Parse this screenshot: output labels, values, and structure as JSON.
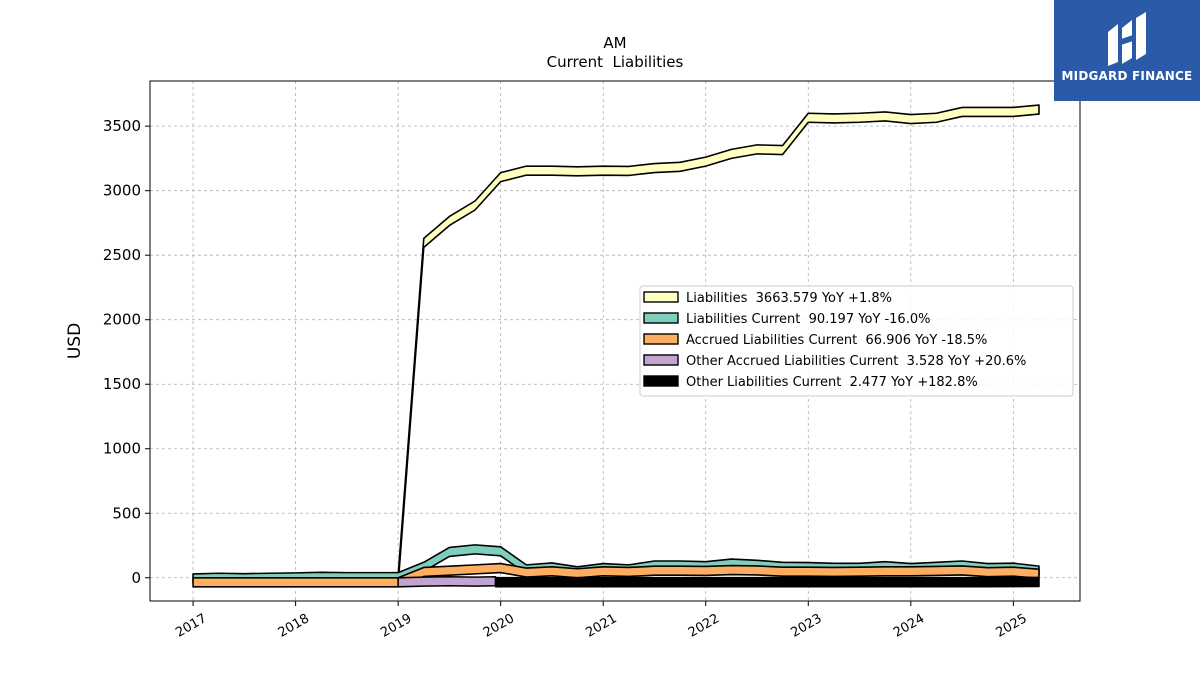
{
  "chart_data": {
    "type": "area",
    "title": "AM",
    "subtitle": "Current  Liabilities",
    "ylabel": "USD",
    "xlabel": "",
    "ylim": [
      -180,
      3850
    ],
    "xlim": [
      2016.58,
      2025.65
    ],
    "yticks": [
      0,
      500,
      1000,
      1500,
      2000,
      2500,
      3000,
      3500
    ],
    "xticks": [
      "2017",
      "2018",
      "2019",
      "2020",
      "2021",
      "2022",
      "2023",
      "2024",
      "2025"
    ],
    "grid": true,
    "legend_position": "center-right",
    "series": [
      {
        "name": "Liabilities",
        "legend": "Liabilities  3663.579 YoY +1.8%",
        "color": "#ffffbf",
        "start": 2019.0,
        "x": [
          2019.0,
          2019.25,
          2019.5,
          2019.75,
          2020.0,
          2020.25,
          2020.5,
          2020.75,
          2021.0,
          2021.25,
          2021.5,
          2021.75,
          2022.0,
          2022.25,
          2022.5,
          2022.75,
          2023.0,
          2023.25,
          2023.5,
          2023.75,
          2024.0,
          2024.25,
          2024.5,
          2024.75,
          2025.0,
          2025.25
        ],
        "values": [
          20,
          2630,
          2800,
          2920,
          3140,
          3190,
          3190,
          3185,
          3190,
          3188,
          3210,
          3220,
          3260,
          3320,
          3355,
          3350,
          3600,
          3595,
          3600,
          3610,
          3590,
          3600,
          3645,
          3645,
          3645,
          3663.579
        ]
      },
      {
        "name": "Liabilities Current",
        "legend": "Liabilities Current  90.197 YoY -16.0%",
        "color": "#7fcdbb",
        "x": [
          2017.0,
          2017.25,
          2017.5,
          2017.75,
          2018.0,
          2018.25,
          2018.5,
          2018.75,
          2019.0,
          2019.25,
          2019.5,
          2019.75,
          2020.0,
          2020.25,
          2020.5,
          2020.75,
          2021.0,
          2021.25,
          2021.5,
          2021.75,
          2022.0,
          2022.25,
          2022.5,
          2022.75,
          2023.0,
          2023.25,
          2023.5,
          2023.75,
          2024.0,
          2024.25,
          2024.5,
          2024.75,
          2025.0,
          2025.25
        ],
        "values": [
          30,
          35,
          32,
          35,
          38,
          42,
          40,
          40,
          40,
          120,
          235,
          255,
          240,
          100,
          115,
          85,
          110,
          100,
          130,
          130,
          125,
          145,
          135,
          120,
          118,
          112,
          112,
          125,
          110,
          120,
          130,
          110,
          113,
          90.197
        ]
      },
      {
        "name": "Accrued Liabilities Current",
        "legend": "Accrued Liabilities Current  66.906 YoY -18.5%",
        "color": "#fdae61",
        "x": [
          2017.0,
          2019.0,
          2019.25,
          2019.5,
          2019.75,
          2020.0,
          2020.25,
          2020.5,
          2020.75,
          2021.0,
          2021.25,
          2021.5,
          2021.75,
          2022.0,
          2022.25,
          2022.5,
          2022.75,
          2023.0,
          2023.25,
          2023.5,
          2023.75,
          2024.0,
          2024.25,
          2024.5,
          2024.75,
          2025.0,
          2025.25
        ],
        "values": [
          0,
          0,
          80,
          90,
          100,
          110,
          75,
          85,
          70,
          85,
          80,
          90,
          90,
          88,
          95,
          92,
          82,
          82,
          80,
          82,
          85,
          85,
          88,
          92,
          78,
          82,
          66.906
        ]
      },
      {
        "name": "Other Accrued Liabilities Current",
        "legend": "Other Accrued Liabilities Current  3.528 YoY +20.6%",
        "color": "#c2a5cf",
        "x": [
          2019.0,
          2019.25,
          2019.5,
          2019.75,
          2019.95
        ],
        "values": [
          0,
          5,
          8,
          5,
          8
        ]
      },
      {
        "name": "Other Liabilities Current",
        "legend": "Other Liabilities Current  2.477 YoY +182.8%",
        "color": "#000000",
        "x": [
          2019.95,
          2020.25,
          2020.5,
          2020.75,
          2021.0,
          2021.25,
          2021.5,
          2021.75,
          2022.0,
          2022.25,
          2022.5,
          2022.75,
          2023.0,
          2023.25,
          2023.5,
          2023.75,
          2024.0,
          2024.25,
          2024.5,
          2024.75,
          2025.0,
          2025.25
        ],
        "values": [
          1,
          1,
          1,
          1,
          1,
          1,
          1,
          1,
          1,
          1,
          1,
          1,
          1,
          1,
          1,
          1,
          1,
          1,
          1,
          1,
          1.5,
          2.477
        ]
      }
    ]
  },
  "logo": {
    "text": "MIDGARD FINANCE"
  }
}
